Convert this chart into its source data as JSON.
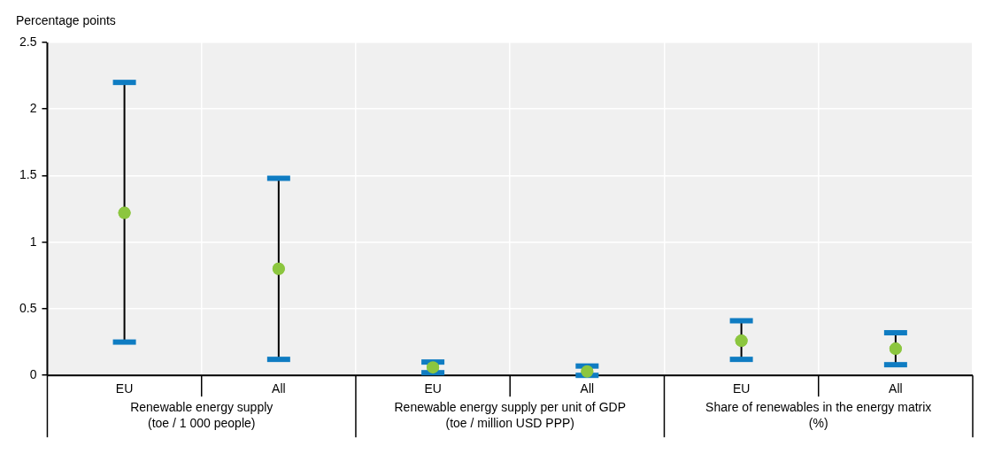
{
  "chart_data": {
    "type": "scatter",
    "ylabel": "Percentage points",
    "categories": [
      "EU",
      "All",
      "EU",
      "All",
      "EU",
      "All"
    ],
    "series": [
      {
        "color": "#8cc63f",
        "values": [
          1.22,
          0.8,
          0.06,
          0.03,
          0.26,
          0.2
        ],
        "errors": [
          [
            0.97,
            0.98
          ],
          [
            0.68,
            0.68
          ],
          [
            0.04,
            0.04
          ],
          [
            0.03,
            0.04
          ],
          [
            0.14,
            0.15
          ],
          [
            0.12,
            0.12
          ]
        ]
      }
    ],
    "annotations": [
      "Renewable energy supply\n(toe / 1 000 people)",
      "Renewable energy supply per unit of GDP\n(toe / million USD PPP)",
      "Share of renewables in the energy matrix\n(%)"
    ],
    "ylim": [
      0,
      2.5
    ],
    "yticks": [
      0,
      0.5,
      1,
      1.5,
      2,
      2.5
    ],
    "grid": true,
    "marker": "circle",
    "legend": false
  }
}
